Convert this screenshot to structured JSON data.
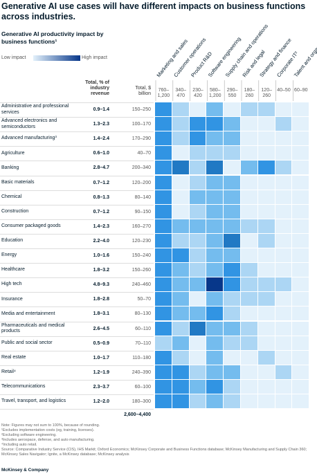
{
  "title": "Generative AI use cases will have different impacts on business functions across industries.",
  "chart_data": {
    "type": "heatmap",
    "subtitle": "Generative AI productivity impact by business functions¹",
    "legend_low": "Low impact",
    "legend_high": "High impact",
    "revenue_header": "Total, % of industry revenue",
    "spend_header": "Total, $ billion",
    "x": [
      "Marketing and sales",
      "Customer operations",
      "Product R&D",
      "Software engineering",
      "Supply chain and operations",
      "Risk and legal",
      "Strategy and finance",
      "Corporate IT²",
      "Talent and organization"
    ],
    "x_totals": [
      "760–1,200",
      "340–470",
      "230–420",
      "580–1,200",
      "290–550",
      "180–260",
      "120–260",
      "40–50",
      "60–90"
    ],
    "categories": [
      "Administrative and professional services",
      "Advanced electronics and semiconductors",
      "Advanced manufacturing³",
      "Agriculture",
      "Banking",
      "Basic materials",
      "Chemical",
      "Construction",
      "Consumer packaged goods",
      "Education",
      "Energy",
      "Healthcare",
      "High tech",
      "Insurance",
      "Media and entertainment",
      "Pharmaceuticals and medical products",
      "Public and social sector",
      "Real estate",
      "Retail⁴",
      "Telecommunications",
      "Travel, transport, and logistics"
    ],
    "revenue_share": [
      "0.9–1.4",
      "1.3–2.3",
      "1.4–2.4",
      "0.6–1.0",
      "2.8–4.7",
      "0.7–1.2",
      "0.8–1.3",
      "0.7–1.2",
      "1.4–2.3",
      "2.2–4.0",
      "1.0–1.6",
      "1.8–3.2",
      "4.8–9.3",
      "1.8–2.8",
      "1.8–3.1",
      "2.6–4.5",
      "0.5–0.9",
      "1.0–1.7",
      "1.2–1.9",
      "2.3–3.7",
      "1.2–2.0"
    ],
    "spend": [
      "150–250",
      "100–170",
      "170–290",
      "40–70",
      "200–340",
      "120–200",
      "80–140",
      "90–150",
      "160–270",
      "120–230",
      "150–240",
      "150–260",
      "240–460",
      "50–70",
      "80–130",
      "60–110",
      "70–110",
      "110–180",
      "240–390",
      "60–100",
      "180–300"
    ],
    "total": "2,600–4,400",
    "colors": [
      "#e3f1fb",
      "#acd6f4",
      "#74bcee",
      "#3194e3",
      "#2179c4",
      "#07378a"
    ],
    "values": [
      [
        4,
        2,
        1,
        3,
        1,
        2,
        2,
        1,
        1
      ],
      [
        4,
        2,
        4,
        4,
        3,
        1,
        1,
        2,
        1
      ],
      [
        4,
        2,
        4,
        3,
        3,
        1,
        1,
        1,
        1
      ],
      [
        4,
        1,
        2,
        2,
        2,
        1,
        1,
        1,
        1
      ],
      [
        4,
        5,
        2,
        5,
        1,
        3,
        4,
        2,
        1
      ],
      [
        4,
        1,
        2,
        3,
        3,
        1,
        1,
        1,
        1
      ],
      [
        4,
        1,
        3,
        3,
        3,
        1,
        1,
        1,
        1
      ],
      [
        4,
        1,
        2,
        3,
        3,
        1,
        1,
        1,
        1
      ],
      [
        4,
        3,
        3,
        3,
        3,
        2,
        2,
        1,
        1
      ],
      [
        4,
        2,
        2,
        3,
        5,
        1,
        2,
        1,
        1
      ],
      [
        4,
        4,
        2,
        3,
        3,
        1,
        1,
        1,
        1
      ],
      [
        4,
        3,
        2,
        3,
        4,
        2,
        1,
        1,
        1
      ],
      [
        4,
        3,
        3,
        6,
        4,
        2,
        2,
        2,
        1
      ],
      [
        4,
        3,
        1,
        3,
        2,
        2,
        2,
        1,
        1
      ],
      [
        4,
        3,
        3,
        4,
        2,
        1,
        1,
        1,
        1
      ],
      [
        4,
        2,
        5,
        3,
        3,
        2,
        1,
        1,
        1
      ],
      [
        2,
        3,
        1,
        3,
        2,
        2,
        1,
        1,
        1
      ],
      [
        4,
        2,
        1,
        3,
        1,
        1,
        2,
        1,
        1
      ],
      [
        4,
        4,
        2,
        3,
        3,
        1,
        1,
        2,
        1
      ],
      [
        4,
        4,
        3,
        4,
        2,
        1,
        1,
        1,
        1
      ],
      [
        4,
        4,
        2,
        3,
        2,
        1,
        1,
        1,
        1
      ]
    ]
  },
  "notes": [
    "Note: Figures may not sum to 100%, because of rounding.",
    "¹Excludes implementation costs (eg, training, licenses).",
    "²Excluding software engineering.",
    "³Includes aerospace, defense, and auto manufacturing.",
    "⁴Including auto retail.",
    "Source: Comparative Industry Service (CIS), IHS Markit; Oxford Economics; McKinsey Corporate and Business Functions database; McKinsey Manufacturing and Supply Chain 360; McKinsey Sales Navigator; Ignite, a McKinsey database; McKinsey analysis"
  ],
  "footer": "McKinsey & Company"
}
